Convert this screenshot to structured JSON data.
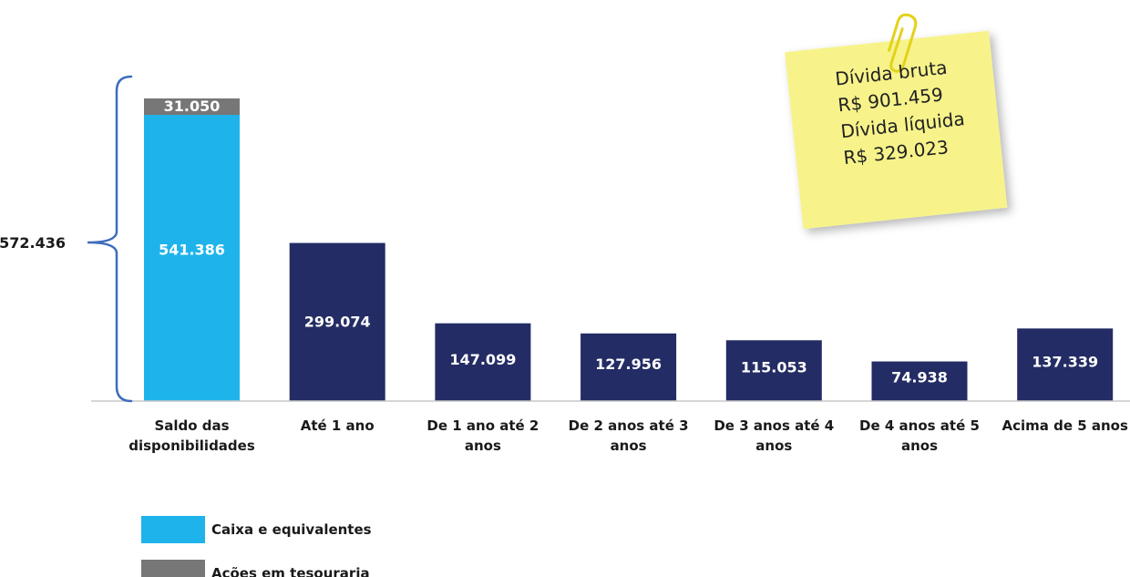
{
  "chart_data": {
    "type": "bar",
    "title": "",
    "categories": [
      [
        "Saldo das",
        "disponibilidades"
      ],
      [
        "Até 1 ano"
      ],
      [
        "De 1 ano até 2",
        "anos"
      ],
      [
        "De 2 anos até 3",
        "anos"
      ],
      [
        "De 3 anos até 4",
        "anos"
      ],
      [
        "De 4 anos até 5",
        "anos"
      ],
      [
        "Acima de 5 anos"
      ]
    ],
    "series": [
      {
        "name": "Caixa e equivalentes",
        "values": [
          541.386,
          null,
          null,
          null,
          null,
          null,
          null
        ],
        "labels": [
          "541.386",
          "",
          "",
          "",
          "",
          "",
          ""
        ],
        "color": "#1EB4EB"
      },
      {
        "name": "Ações em tesouraria",
        "values": [
          31.05,
          null,
          null,
          null,
          null,
          null,
          null
        ],
        "labels": [
          "31.050",
          "",
          "",
          "",
          "",
          "",
          ""
        ],
        "color": "#777777"
      },
      {
        "values": [
          null,
          299.074,
          147.099,
          127.956,
          115.053,
          74.938,
          137.339
        ],
        "labels": [
          "",
          "299.074",
          "147.099",
          "127.956",
          "115.053",
          "74.938",
          "137.339"
        ],
        "color": "#232C64"
      }
    ],
    "total": {
      "value": 572.436,
      "label": "572.436",
      "bracket_color": "#3E6DBC"
    },
    "legend": {
      "position": "bottom-left",
      "items": [
        {
          "label": "Caixa e equivalentes",
          "color": "#1EB4EB"
        },
        {
          "label": "Ações em tesouraria",
          "color": "#777777"
        }
      ]
    },
    "annotation": {
      "lines": [
        "Dívida bruta",
        "R$ 901.459",
        "Dívida líquida",
        "R$ 329.023"
      ],
      "note_color": "#F7F38A"
    },
    "grid": false,
    "ylim": [
      0,
      572.436
    ]
  }
}
